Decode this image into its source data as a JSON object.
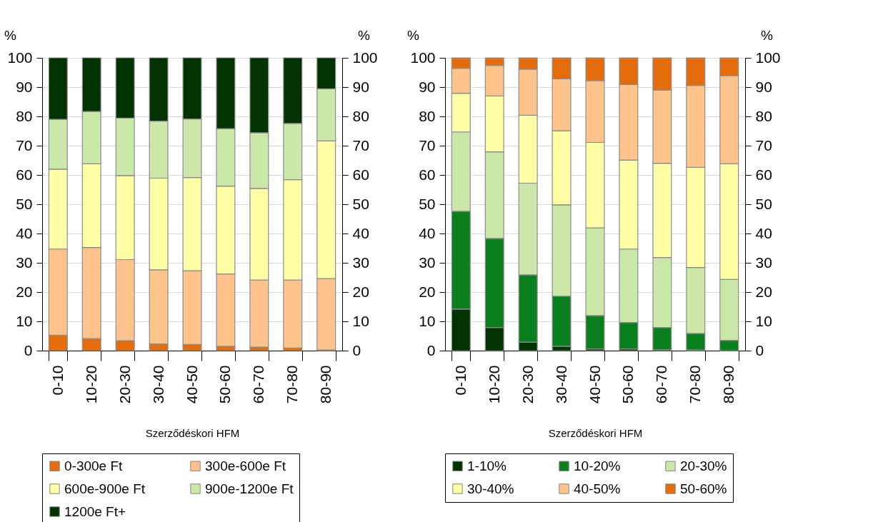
{
  "chart_data": [
    {
      "type": "bar",
      "stacked": true,
      "xlabel": "Szerződéskori HFM",
      "ylabel": "%",
      "y2label": "%",
      "categories": [
        "0-10",
        "10-20",
        "20-30",
        "30-40",
        "40-50",
        "50-60",
        "60-70",
        "70-80",
        "80-90"
      ],
      "series": [
        {
          "name": "0-300e Ft",
          "color": "#e46c0a",
          "values": [
            5.3,
            4.1,
            3.4,
            2.3,
            2.1,
            1.5,
            1.2,
            0.9,
            0.2
          ]
        },
        {
          "name": "300e-600e Ft",
          "color": "#ffc48c",
          "values": [
            29.4,
            31.1,
            27.7,
            25.3,
            25.2,
            24.7,
            22.9,
            23.2,
            24.4
          ]
        },
        {
          "name": "600e-900e Ft",
          "color": "#ffffa6",
          "values": [
            27.3,
            28.6,
            28.7,
            31.3,
            31.8,
            30.0,
            31.3,
            34.3,
            47.0
          ]
        },
        {
          "name": "900e-1200e Ft",
          "color": "#cce8a8",
          "values": [
            17.0,
            17.9,
            19.6,
            19.5,
            20.0,
            19.6,
            19.0,
            19.2,
            17.8
          ]
        },
        {
          "name": "1200e Ft+",
          "color": "#003300",
          "values": [
            21.0,
            18.3,
            20.6,
            21.6,
            20.9,
            24.2,
            25.6,
            22.4,
            10.6
          ]
        }
      ],
      "ylim": [
        0,
        100
      ],
      "yticks": [
        0,
        10,
        20,
        30,
        40,
        50,
        60,
        70,
        80,
        90,
        100
      ],
      "y2lim": [
        0,
        100
      ],
      "y2ticks": [
        0,
        10,
        20,
        30,
        40,
        50,
        60,
        70,
        80,
        90,
        100
      ],
      "grid": "y",
      "legend": "bottom"
    },
    {
      "type": "bar",
      "stacked": true,
      "xlabel": "Szerződéskori HFM",
      "ylabel": "%",
      "y2label": "%",
      "categories": [
        "0-10",
        "10-20",
        "20-30",
        "30-40",
        "40-50",
        "50-60",
        "60-70",
        "70-80",
        "80-90"
      ],
      "series": [
        {
          "name": "1-10%",
          "color": "#003300",
          "values": [
            14.2,
            7.9,
            2.9,
            1.5,
            0.6,
            0.6,
            0.3,
            0.2,
            0.0
          ]
        },
        {
          "name": "10-20%",
          "color": "#0a7f1e",
          "values": [
            33.4,
            30.4,
            23.0,
            17.1,
            11.4,
            9.0,
            7.6,
            5.7,
            3.5
          ]
        },
        {
          "name": "20-30%",
          "color": "#cce8a8",
          "values": [
            27.1,
            29.6,
            31.3,
            31.2,
            29.9,
            25.1,
            23.9,
            22.5,
            20.8
          ]
        },
        {
          "name": "30-40%",
          "color": "#ffffa6",
          "values": [
            13.2,
            19.1,
            23.2,
            25.3,
            29.2,
            30.4,
            32.2,
            34.2,
            39.5
          ]
        },
        {
          "name": "40-50%",
          "color": "#ffc48c",
          "values": [
            8.5,
            10.4,
            15.7,
            17.7,
            21.1,
            25.8,
            25.0,
            28.0,
            30.1
          ]
        },
        {
          "name": "50-60%",
          "color": "#e46c0a",
          "values": [
            3.6,
            2.6,
            3.9,
            7.2,
            7.8,
            9.1,
            11.0,
            9.4,
            6.1
          ]
        }
      ],
      "ylim": [
        0,
        100
      ],
      "yticks": [
        0,
        10,
        20,
        30,
        40,
        50,
        60,
        70,
        80,
        90,
        100
      ],
      "y2lim": [
        0,
        100
      ],
      "y2ticks": [
        0,
        10,
        20,
        30,
        40,
        50,
        60,
        70,
        80,
        90,
        100
      ],
      "grid": "y",
      "legend": "bottom"
    }
  ]
}
